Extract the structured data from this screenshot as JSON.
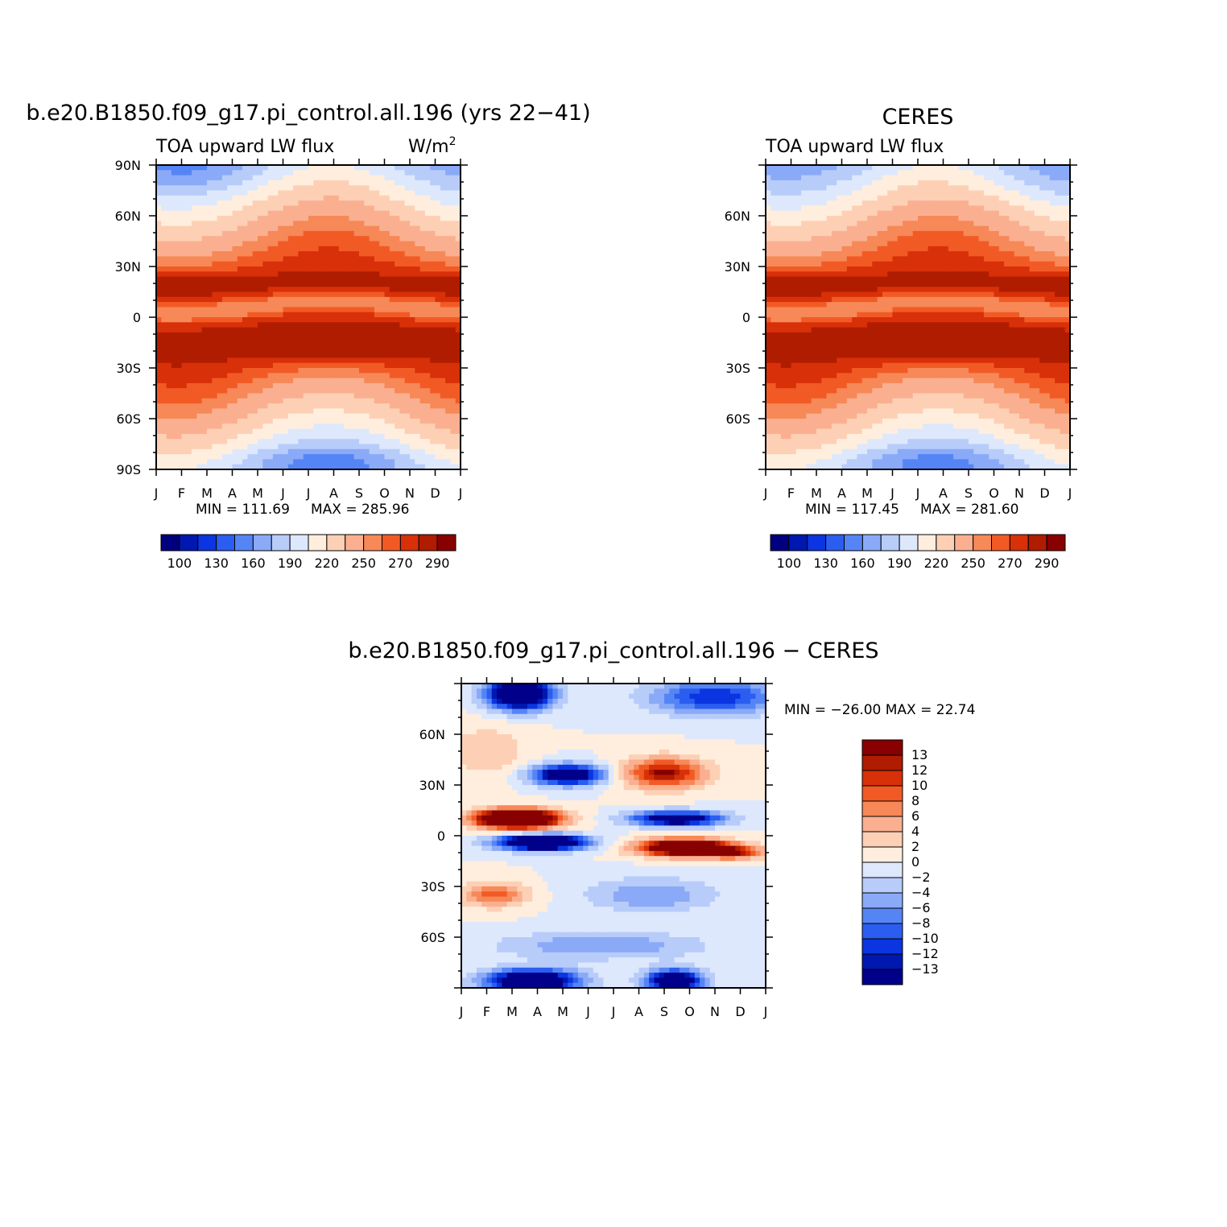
{
  "chart_data": [
    {
      "type": "heatmap",
      "title": "b.e20.B1850.f09_g17.pi_control.all.196 (yrs 22-41)",
      "subtitle_left": "TOA upward LW flux",
      "units": "W/m",
      "units_sup": "2",
      "x_ticks": [
        "J",
        "F",
        "M",
        "A",
        "M",
        "J",
        "J",
        "A",
        "S",
        "O",
        "N",
        "D",
        "J"
      ],
      "y_ticks": [
        "90N",
        "60N",
        "30N",
        "0",
        "30S",
        "60S",
        "90S"
      ],
      "min_label": "MIN = 111.69",
      "max_label": "MAX = 285.96",
      "colorbar_labels": [
        "100",
        "130",
        "160",
        "190",
        "220",
        "250",
        "270",
        "290"
      ],
      "ylim": [
        -90,
        90
      ]
    },
    {
      "type": "heatmap",
      "title": "CERES",
      "subtitle_left": "TOA upward LW flux",
      "x_ticks": [
        "J",
        "F",
        "M",
        "A",
        "M",
        "J",
        "J",
        "A",
        "S",
        "O",
        "N",
        "D",
        "J"
      ],
      "y_ticks": [
        "60N",
        "30N",
        "0",
        "30S",
        "60S"
      ],
      "min_label": "MIN = 117.45",
      "max_label": "MAX = 281.60",
      "colorbar_labels": [
        "100",
        "130",
        "160",
        "190",
        "220",
        "250",
        "270",
        "290"
      ],
      "ylim": [
        -90,
        90
      ]
    },
    {
      "type": "heatmap",
      "title": "b.e20.B1850.f09_g17.pi_control.all.196 - CERES",
      "x_ticks": [
        "J",
        "F",
        "M",
        "A",
        "M",
        "J",
        "J",
        "A",
        "S",
        "O",
        "N",
        "D",
        "J"
      ],
      "y_ticks": [
        "60N",
        "30N",
        "0",
        "30S",
        "60S"
      ],
      "minmax_label": "MIN = -26.00 MAX =  22.74",
      "colorbar_labels": [
        "13",
        "12",
        "10",
        "8",
        "6",
        "4",
        "2",
        "0",
        "-2",
        "-4",
        "-6",
        "-8",
        "-10",
        "-12",
        "-13"
      ],
      "ylim": [
        -90,
        90
      ]
    }
  ],
  "palette": {
    "abs": [
      "#00007f",
      "#0018b0",
      "#0a35e0",
      "#2b5df0",
      "#5585f5",
      "#8aaaf8",
      "#b8ccfa",
      "#dde8fd",
      "#ffeedd",
      "#fdd0b5",
      "#fab090",
      "#f78858",
      "#f25a25",
      "#d83008",
      "#b01c00",
      "#880000"
    ],
    "diff": [
      "#00008a",
      "#0018b0",
      "#0a35e0",
      "#2b5df0",
      "#5585f5",
      "#8aaaf8",
      "#b8ccfa",
      "#dde8fd",
      "#ffeedd",
      "#fdd0b5",
      "#fab090",
      "#f78858",
      "#f25a25",
      "#d83008",
      "#b01c00",
      "#880000"
    ]
  }
}
